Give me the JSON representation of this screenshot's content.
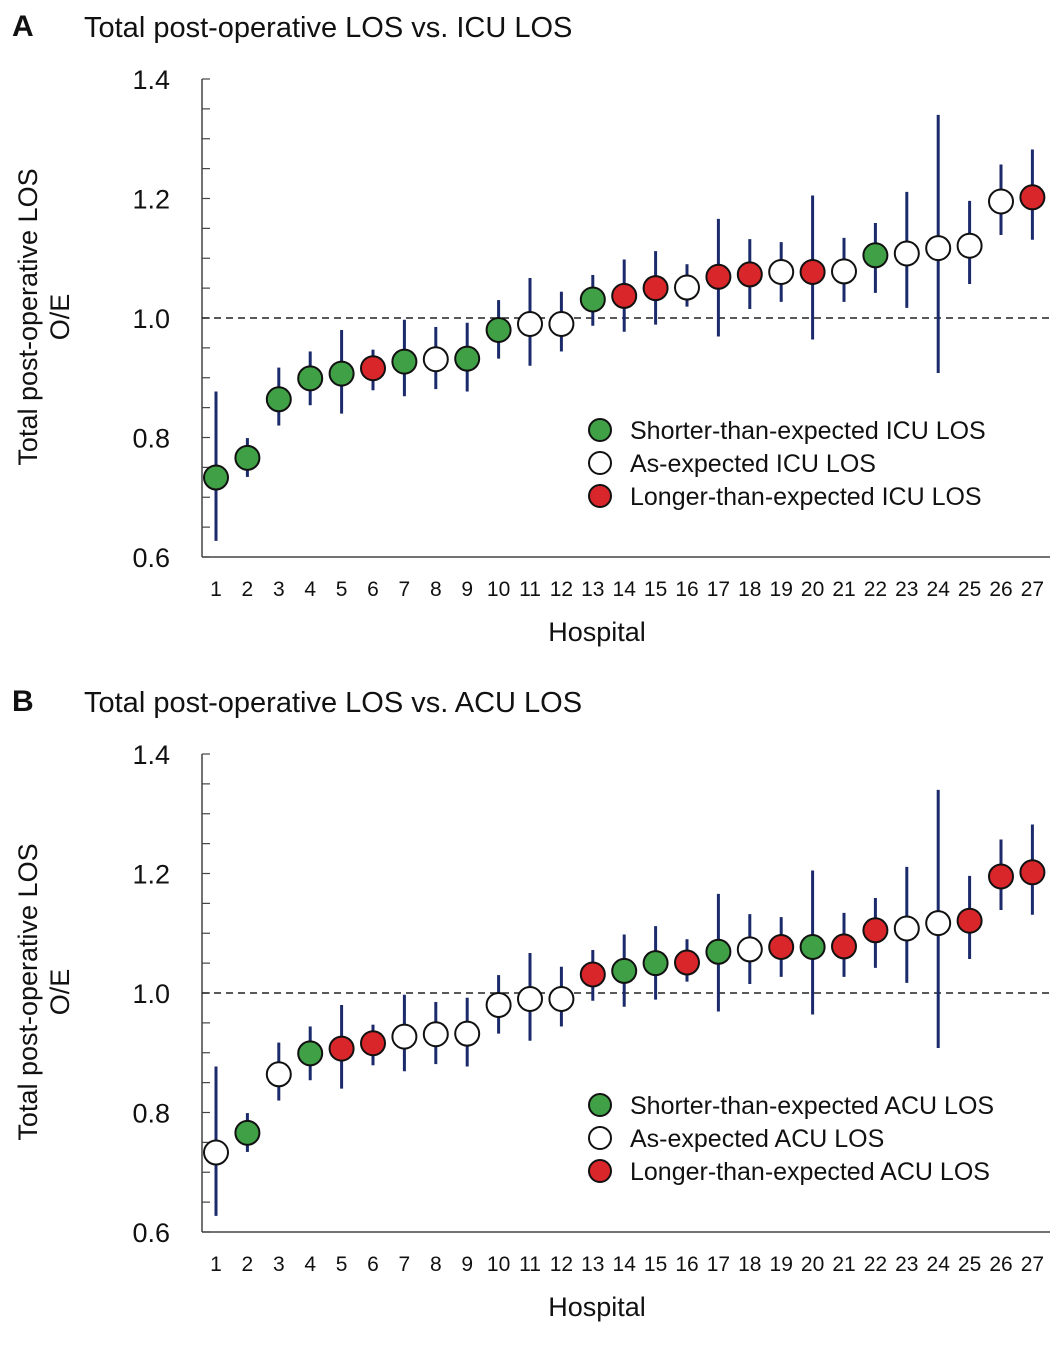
{
  "colors": {
    "shorter": "#3fa046",
    "as_expected": "#ffffff",
    "longer": "#d8262a",
    "error_bar": "#1b2a6b",
    "axis": "#444444"
  },
  "chart_data": [
    {
      "panel": "A",
      "type": "scatter",
      "title": "Total post-operative LOS vs. ICU LOS",
      "xlabel": "Hospital",
      "ylabel": [
        "Total post-operative LOS",
        "O/E"
      ],
      "ylim": [
        0.6,
        1.4
      ],
      "yticks": [
        "0.6",
        "0.8",
        "1.0",
        "1.2",
        "1.4"
      ],
      "reference_line": 1.0,
      "legend": [
        {
          "category": "shorter",
          "label": "Shorter-than-expected ICU LOS"
        },
        {
          "category": "as_expected",
          "label": "As-expected ICU LOS"
        },
        {
          "category": "longer",
          "label": "Longer-than-expected ICU LOS"
        }
      ],
      "legend_position": "lower-right",
      "points": [
        {
          "x": "1",
          "y": 0.733,
          "lo": 0.627,
          "hi": 0.877,
          "category": "shorter"
        },
        {
          "x": "2",
          "y": 0.766,
          "lo": 0.734,
          "hi": 0.799,
          "category": "shorter"
        },
        {
          "x": "3",
          "y": 0.864,
          "lo": 0.82,
          "hi": 0.917,
          "category": "shorter"
        },
        {
          "x": "4",
          "y": 0.899,
          "lo": 0.854,
          "hi": 0.944,
          "category": "shorter"
        },
        {
          "x": "5",
          "y": 0.907,
          "lo": 0.84,
          "hi": 0.98,
          "category": "shorter"
        },
        {
          "x": "6",
          "y": 0.916,
          "lo": 0.879,
          "hi": 0.947,
          "category": "longer"
        },
        {
          "x": "7",
          "y": 0.927,
          "lo": 0.869,
          "hi": 0.997,
          "category": "shorter"
        },
        {
          "x": "8",
          "y": 0.931,
          "lo": 0.881,
          "hi": 0.985,
          "category": "as_expected"
        },
        {
          "x": "9",
          "y": 0.932,
          "lo": 0.877,
          "hi": 0.992,
          "category": "shorter"
        },
        {
          "x": "10",
          "y": 0.98,
          "lo": 0.932,
          "hi": 1.03,
          "category": "shorter"
        },
        {
          "x": "11",
          "y": 0.99,
          "lo": 0.92,
          "hi": 1.067,
          "category": "as_expected"
        },
        {
          "x": "12",
          "y": 0.99,
          "lo": 0.944,
          "hi": 1.044,
          "category": "as_expected"
        },
        {
          "x": "13",
          "y": 1.031,
          "lo": 0.987,
          "hi": 1.072,
          "category": "shorter"
        },
        {
          "x": "14",
          "y": 1.037,
          "lo": 0.977,
          "hi": 1.098,
          "category": "longer"
        },
        {
          "x": "15",
          "y": 1.05,
          "lo": 0.989,
          "hi": 1.112,
          "category": "longer"
        },
        {
          "x": "16",
          "y": 1.051,
          "lo": 1.019,
          "hi": 1.09,
          "category": "as_expected"
        },
        {
          "x": "17",
          "y": 1.069,
          "lo": 0.969,
          "hi": 1.166,
          "category": "longer"
        },
        {
          "x": "18",
          "y": 1.073,
          "lo": 1.015,
          "hi": 1.132,
          "category": "longer"
        },
        {
          "x": "19",
          "y": 1.077,
          "lo": 1.027,
          "hi": 1.127,
          "category": "as_expected"
        },
        {
          "x": "20",
          "y": 1.077,
          "lo": 0.964,
          "hi": 1.205,
          "category": "longer"
        },
        {
          "x": "21",
          "y": 1.078,
          "lo": 1.027,
          "hi": 1.134,
          "category": "as_expected"
        },
        {
          "x": "22",
          "y": 1.105,
          "lo": 1.042,
          "hi": 1.159,
          "category": "shorter"
        },
        {
          "x": "23",
          "y": 1.108,
          "lo": 1.017,
          "hi": 1.211,
          "category": "as_expected"
        },
        {
          "x": "24",
          "y": 1.117,
          "lo": 0.908,
          "hi": 1.34,
          "category": "as_expected"
        },
        {
          "x": "25",
          "y": 1.121,
          "lo": 1.057,
          "hi": 1.196,
          "category": "as_expected"
        },
        {
          "x": "26",
          "y": 1.195,
          "lo": 1.139,
          "hi": 1.257,
          "category": "as_expected"
        },
        {
          "x": "27",
          "y": 1.202,
          "lo": 1.131,
          "hi": 1.282,
          "category": "longer"
        }
      ]
    },
    {
      "panel": "B",
      "type": "scatter",
      "title": "Total post-operative LOS vs. ACU LOS",
      "xlabel": "Hospital",
      "ylabel": [
        "Total post-operative LOS",
        "O/E"
      ],
      "ylim": [
        0.6,
        1.4
      ],
      "yticks": [
        "0.6",
        "0.8",
        "1.0",
        "1.2",
        "1.4"
      ],
      "reference_line": 1.0,
      "legend": [
        {
          "category": "shorter",
          "label": "Shorter-than-expected ACU LOS"
        },
        {
          "category": "as_expected",
          "label": "As-expected ACU LOS"
        },
        {
          "category": "longer",
          "label": "Longer-than-expected ACU LOS"
        }
      ],
      "legend_position": "lower-right",
      "points": [
        {
          "x": "1",
          "y": 0.733,
          "lo": 0.627,
          "hi": 0.877,
          "category": "as_expected"
        },
        {
          "x": "2",
          "y": 0.766,
          "lo": 0.734,
          "hi": 0.799,
          "category": "shorter"
        },
        {
          "x": "3",
          "y": 0.864,
          "lo": 0.82,
          "hi": 0.917,
          "category": "as_expected"
        },
        {
          "x": "4",
          "y": 0.899,
          "lo": 0.854,
          "hi": 0.944,
          "category": "shorter"
        },
        {
          "x": "5",
          "y": 0.907,
          "lo": 0.84,
          "hi": 0.98,
          "category": "longer"
        },
        {
          "x": "6",
          "y": 0.916,
          "lo": 0.879,
          "hi": 0.947,
          "category": "longer"
        },
        {
          "x": "7",
          "y": 0.927,
          "lo": 0.869,
          "hi": 0.997,
          "category": "as_expected"
        },
        {
          "x": "8",
          "y": 0.931,
          "lo": 0.881,
          "hi": 0.985,
          "category": "as_expected"
        },
        {
          "x": "9",
          "y": 0.932,
          "lo": 0.877,
          "hi": 0.992,
          "category": "as_expected"
        },
        {
          "x": "10",
          "y": 0.98,
          "lo": 0.932,
          "hi": 1.03,
          "category": "as_expected"
        },
        {
          "x": "11",
          "y": 0.99,
          "lo": 0.92,
          "hi": 1.067,
          "category": "as_expected"
        },
        {
          "x": "12",
          "y": 0.99,
          "lo": 0.944,
          "hi": 1.044,
          "category": "as_expected"
        },
        {
          "x": "13",
          "y": 1.031,
          "lo": 0.987,
          "hi": 1.072,
          "category": "longer"
        },
        {
          "x": "14",
          "y": 1.037,
          "lo": 0.977,
          "hi": 1.098,
          "category": "shorter"
        },
        {
          "x": "15",
          "y": 1.05,
          "lo": 0.989,
          "hi": 1.112,
          "category": "shorter"
        },
        {
          "x": "16",
          "y": 1.051,
          "lo": 1.019,
          "hi": 1.09,
          "category": "longer"
        },
        {
          "x": "17",
          "y": 1.069,
          "lo": 0.969,
          "hi": 1.166,
          "category": "shorter"
        },
        {
          "x": "18",
          "y": 1.073,
          "lo": 1.015,
          "hi": 1.132,
          "category": "as_expected"
        },
        {
          "x": "19",
          "y": 1.077,
          "lo": 1.027,
          "hi": 1.127,
          "category": "longer"
        },
        {
          "x": "20",
          "y": 1.077,
          "lo": 0.964,
          "hi": 1.205,
          "category": "shorter"
        },
        {
          "x": "21",
          "y": 1.078,
          "lo": 1.027,
          "hi": 1.134,
          "category": "longer"
        },
        {
          "x": "22",
          "y": 1.105,
          "lo": 1.042,
          "hi": 1.159,
          "category": "longer"
        },
        {
          "x": "23",
          "y": 1.108,
          "lo": 1.017,
          "hi": 1.211,
          "category": "as_expected"
        },
        {
          "x": "24",
          "y": 1.117,
          "lo": 0.908,
          "hi": 1.34,
          "category": "as_expected"
        },
        {
          "x": "25",
          "y": 1.121,
          "lo": 1.057,
          "hi": 1.196,
          "category": "longer"
        },
        {
          "x": "26",
          "y": 1.195,
          "lo": 1.139,
          "hi": 1.257,
          "category": "longer"
        },
        {
          "x": "27",
          "y": 1.202,
          "lo": 1.131,
          "hi": 1.282,
          "category": "longer"
        }
      ]
    }
  ]
}
